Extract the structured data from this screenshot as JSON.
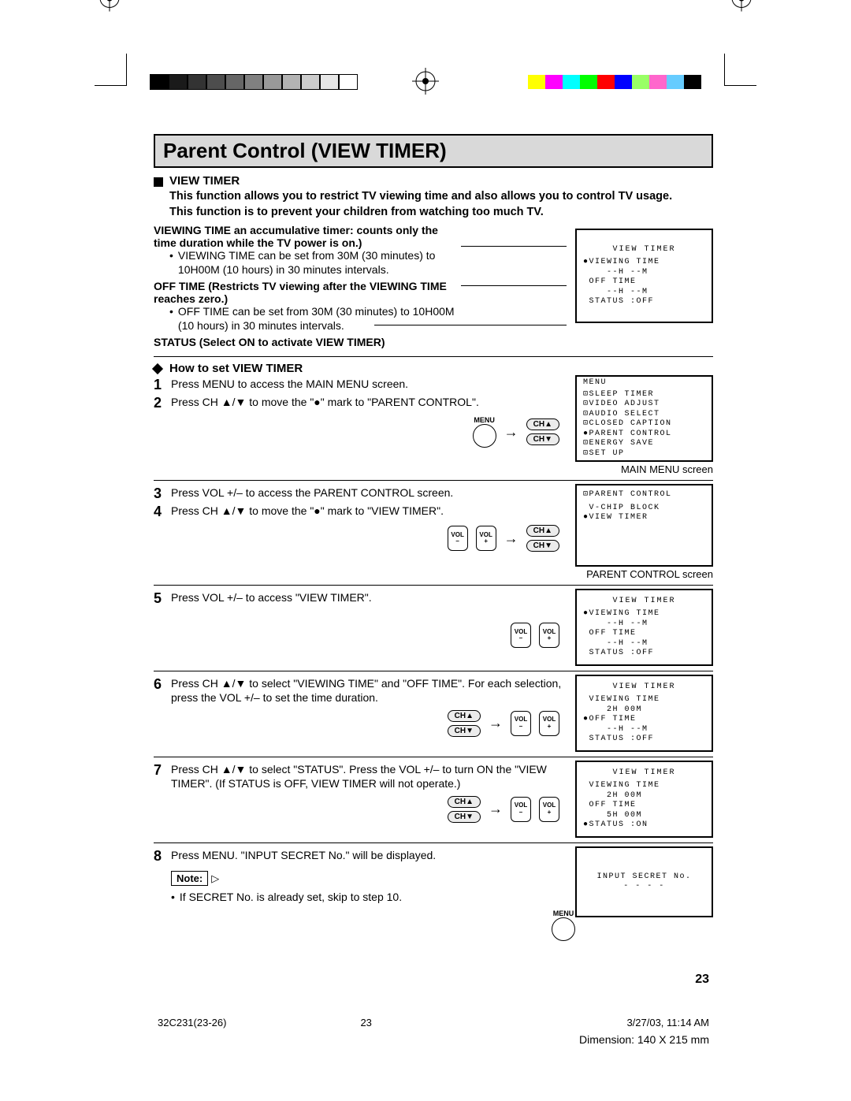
{
  "printer": {
    "gray_swatches": [
      "#000000",
      "#1a1a1a",
      "#333333",
      "#4d4d4d",
      "#666666",
      "#808080",
      "#999999",
      "#b3b3b3",
      "#cccccc",
      "#e6e6e6",
      "#ffffff"
    ],
    "gray_border": "#000000",
    "color_swatches": [
      "#ffff00",
      "#ff00ff",
      "#00ffff",
      "#00ff00",
      "#ff0000",
      "#0000ff",
      "#99ff66",
      "#ff66cc",
      "#66ccff",
      "#000000"
    ]
  },
  "title": "Parent Control (VIEW TIMER)",
  "section_title": "VIEW TIMER",
  "intro1": "This function allows you to restrict TV viewing time and also allows you to control TV usage.",
  "intro2": "This function is to prevent your children from watching too much TV.",
  "viewing_time_heading": "VIEWING TIME an accumulative timer: counts only the time duration while the TV power is on.)",
  "viewing_time_body": "VIEWING TIME can be set from 30M (30 minutes) to 10H00M (10 hours) in 30 minutes intervals.",
  "off_time_heading": "OFF TIME (Restricts TV viewing after the VIEWING TIME reaches zero.)",
  "off_time_body": "OFF TIME can be set from 30M (30 minutes) to 10H00M (10 hours) in 30 minutes intervals.",
  "status_heading": "STATUS (Select ON to activate VIEW TIMER)",
  "howto_title": "How to set VIEW TIMER",
  "steps": {
    "s1": "Press MENU to access the MAIN MENU screen.",
    "s2": "Press CH ▲/▼ to move the \"●\" mark to \"PARENT CONTROL\".",
    "s3": "Press VOL +/– to access the PARENT CONTROL screen.",
    "s4": "Press CH ▲/▼ to move the \"●\" mark to \"VIEW TIMER\".",
    "s5": "Press VOL +/– to access \"VIEW TIMER\".",
    "s6": "Press CH ▲/▼ to select \"VIEWING TIME\" and \"OFF TIME\". For each selection, press the VOL +/– to set the time duration.",
    "s7": "Press CH ▲/▼ to select \"STATUS\". Press the VOL +/– to turn ON the \"VIEW TIMER\". (If STATUS is OFF, VIEW TIMER will not operate.)",
    "s8": "Press MENU. \"INPUT SECRET No.\" will be displayed."
  },
  "note_label": "Note:",
  "note_text": "If SECRET No. is already set, skip to step 10.",
  "btn": {
    "menu": "MENU",
    "ch_up": "CH▲",
    "ch_down": "CH▼",
    "vol_minus_top": "VOL",
    "vol_minus_bot": "–",
    "vol_plus_top": "VOL",
    "vol_plus_bot": "+"
  },
  "osd": {
    "view_timer_title": "VIEW TIMER",
    "vt1": "●VIEWING TIME\n    --H --M\n OFF TIME\n    --H --M\n STATUS :OFF",
    "main_menu_title": "MENU",
    "main_menu_body": "⊡SLEEP TIMER\n⊡VIDEO ADJUST\n⊡AUDIO SELECT\n⊡CLOSED CAPTION\n●PARENT CONTROL\n⊡ENERGY SAVE\n⊡SET UP",
    "main_menu_caption": "MAIN MENU screen",
    "parent_title": "⊡PARENT CONTROL",
    "parent_body": " V-CHIP BLOCK\n●VIEW TIMER",
    "parent_caption": "PARENT CONTROL screen",
    "vt2": "●VIEWING TIME\n    --H --M\n OFF TIME\n    --H --M\n STATUS :OFF",
    "vt3": " VIEWING TIME\n    2H 00M\n●OFF TIME\n    --H --M\n STATUS :OFF",
    "vt4": " VIEWING TIME\n    2H 00M\n OFF TIME\n    5H 00M\n●STATUS :ON",
    "secret": "INPUT SECRET No.\n- - - -"
  },
  "page_number": "23",
  "footer": {
    "doc": "32C231(23-26)",
    "page": "23",
    "date": "3/27/03, 11:14 AM"
  },
  "dimension": "Dimension: 140  X 215 mm"
}
